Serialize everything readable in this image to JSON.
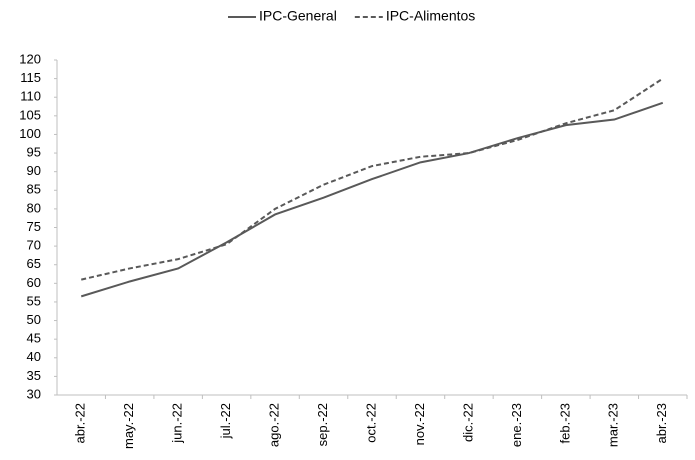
{
  "chart_data": {
    "type": "line",
    "categories": [
      "abr.-22",
      "may.-22",
      "jun.-22",
      "jul.-22",
      "ago.-22",
      "sep.-22",
      "oct.-22",
      "nov.-22",
      "dic.-22",
      "ene.-23",
      "feb.-23",
      "mar.-23",
      "abr.-23"
    ],
    "series": [
      {
        "name": "IPC-General",
        "color": "#595959",
        "dash": false,
        "values": [
          56.5,
          60.5,
          64,
          71,
          78.5,
          83,
          88,
          92.5,
          95,
          99,
          102.5,
          104,
          108.5
        ]
      },
      {
        "name": "IPC-Alimentos",
        "color": "#595959",
        "dash": true,
        "values": [
          61,
          64,
          66.5,
          70.5,
          80,
          86.5,
          91.5,
          94,
          95,
          98.5,
          103,
          106.5,
          115
        ]
      }
    ],
    "ylim": [
      30,
      120
    ],
    "yticks": [
      30,
      35,
      40,
      45,
      50,
      55,
      60,
      65,
      70,
      75,
      80,
      85,
      90,
      95,
      100,
      105,
      110,
      115,
      120
    ],
    "grid": false,
    "legend": "top"
  }
}
